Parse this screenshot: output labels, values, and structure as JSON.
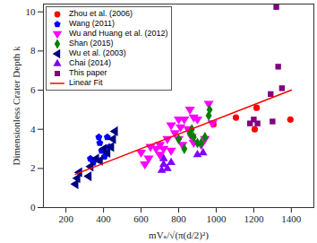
{
  "chart_data": {
    "type": "scatter",
    "xlabel": "mVₛ/√(π(d/2)²)",
    "ylabel": "Dimensionless Crater Depth k",
    "xlim": [
      80,
      1520
    ],
    "xticks": [
      200,
      400,
      600,
      800,
      1000,
      1200,
      1400
    ],
    "ylim": [
      0,
      10.4
    ],
    "yticks": [
      0,
      2,
      4,
      6,
      8,
      10
    ],
    "legend": "upper left",
    "series": [
      {
        "name": "Zhou et al. (2006)",
        "color": "#ff0000",
        "marker": "circle",
        "x": [
          985,
          1105,
          1215,
          1205,
          1395
        ],
        "values": [
          4.25,
          4.6,
          5.1,
          4.0,
          4.5
        ]
      },
      {
        "name": "Wang (2011)",
        "color": "#0000ff",
        "marker": "pentagon",
        "x": [
          375,
          380,
          420,
          330,
          345,
          405,
          430,
          390
        ],
        "values": [
          3.6,
          3.3,
          3.6,
          2.5,
          2.3,
          2.6,
          3.1,
          2.9
        ]
      },
      {
        "name": "Wu and Huang et al. (2012)",
        "color": "#ff00ff",
        "marker": "triangle-down",
        "x": [
          600,
          620,
          640,
          680,
          700,
          720,
          740,
          760,
          780,
          800,
          810,
          830,
          850,
          860,
          870,
          900,
          920,
          940,
          960,
          980,
          760,
          820,
          700,
          650,
          880,
          800,
          880
        ],
        "values": [
          2.8,
          2.2,
          2.5,
          3.0,
          3.2,
          3.0,
          3.5,
          2.9,
          3.8,
          4.5,
          4.1,
          4.5,
          4.0,
          5.0,
          3.6,
          4.5,
          3.2,
          3.5,
          5.3,
          4.3,
          4.2,
          3.2,
          2.7,
          3.1,
          4.6,
          3.5,
          3.3
        ]
      },
      {
        "name": "Shan (2015)",
        "color": "#008000",
        "marker": "diamond",
        "x": [
          800,
          830,
          860,
          870,
          900,
          920,
          940,
          960,
          965,
          880
        ],
        "values": [
          3.5,
          3.0,
          3.8,
          4.0,
          3.3,
          3.3,
          3.6,
          4.7,
          5.0,
          3.6
        ]
      },
      {
        "name": "Wu et al. (2003)",
        "color": "#000080",
        "marker": "triangle-left",
        "x": [
          250,
          260,
          270,
          320,
          330,
          360,
          380,
          420,
          440,
          450,
          460,
          400
        ],
        "values": [
          1.2,
          1.5,
          1.8,
          1.6,
          2.1,
          2.5,
          2.4,
          2.8,
          3.1,
          3.5,
          3.9,
          3.0
        ]
      },
      {
        "name": "Chai (2014)",
        "color": "#8000ff",
        "marker": "triangle-up",
        "x": [
          710,
          720,
          720,
          740,
          900,
          930,
          760
        ],
        "values": [
          1.9,
          2.2,
          2.5,
          2.0,
          2.7,
          2.8,
          2.3
        ]
      },
      {
        "name": "This paper",
        "color": "#800080",
        "marker": "square",
        "x": [
          1180,
          1200,
          1220,
          1290,
          1300,
          1330,
          1350,
          1320
        ],
        "values": [
          4.3,
          4.5,
          4.3,
          5.8,
          4.4,
          7.2,
          6.1,
          10.25
        ]
      },
      {
        "name": "Linear Fit",
        "color": "#ff0000",
        "type": "line",
        "line_style": "solid",
        "x": [
          250,
          1400
        ],
        "values": [
          1.7,
          6.0
        ]
      }
    ]
  }
}
